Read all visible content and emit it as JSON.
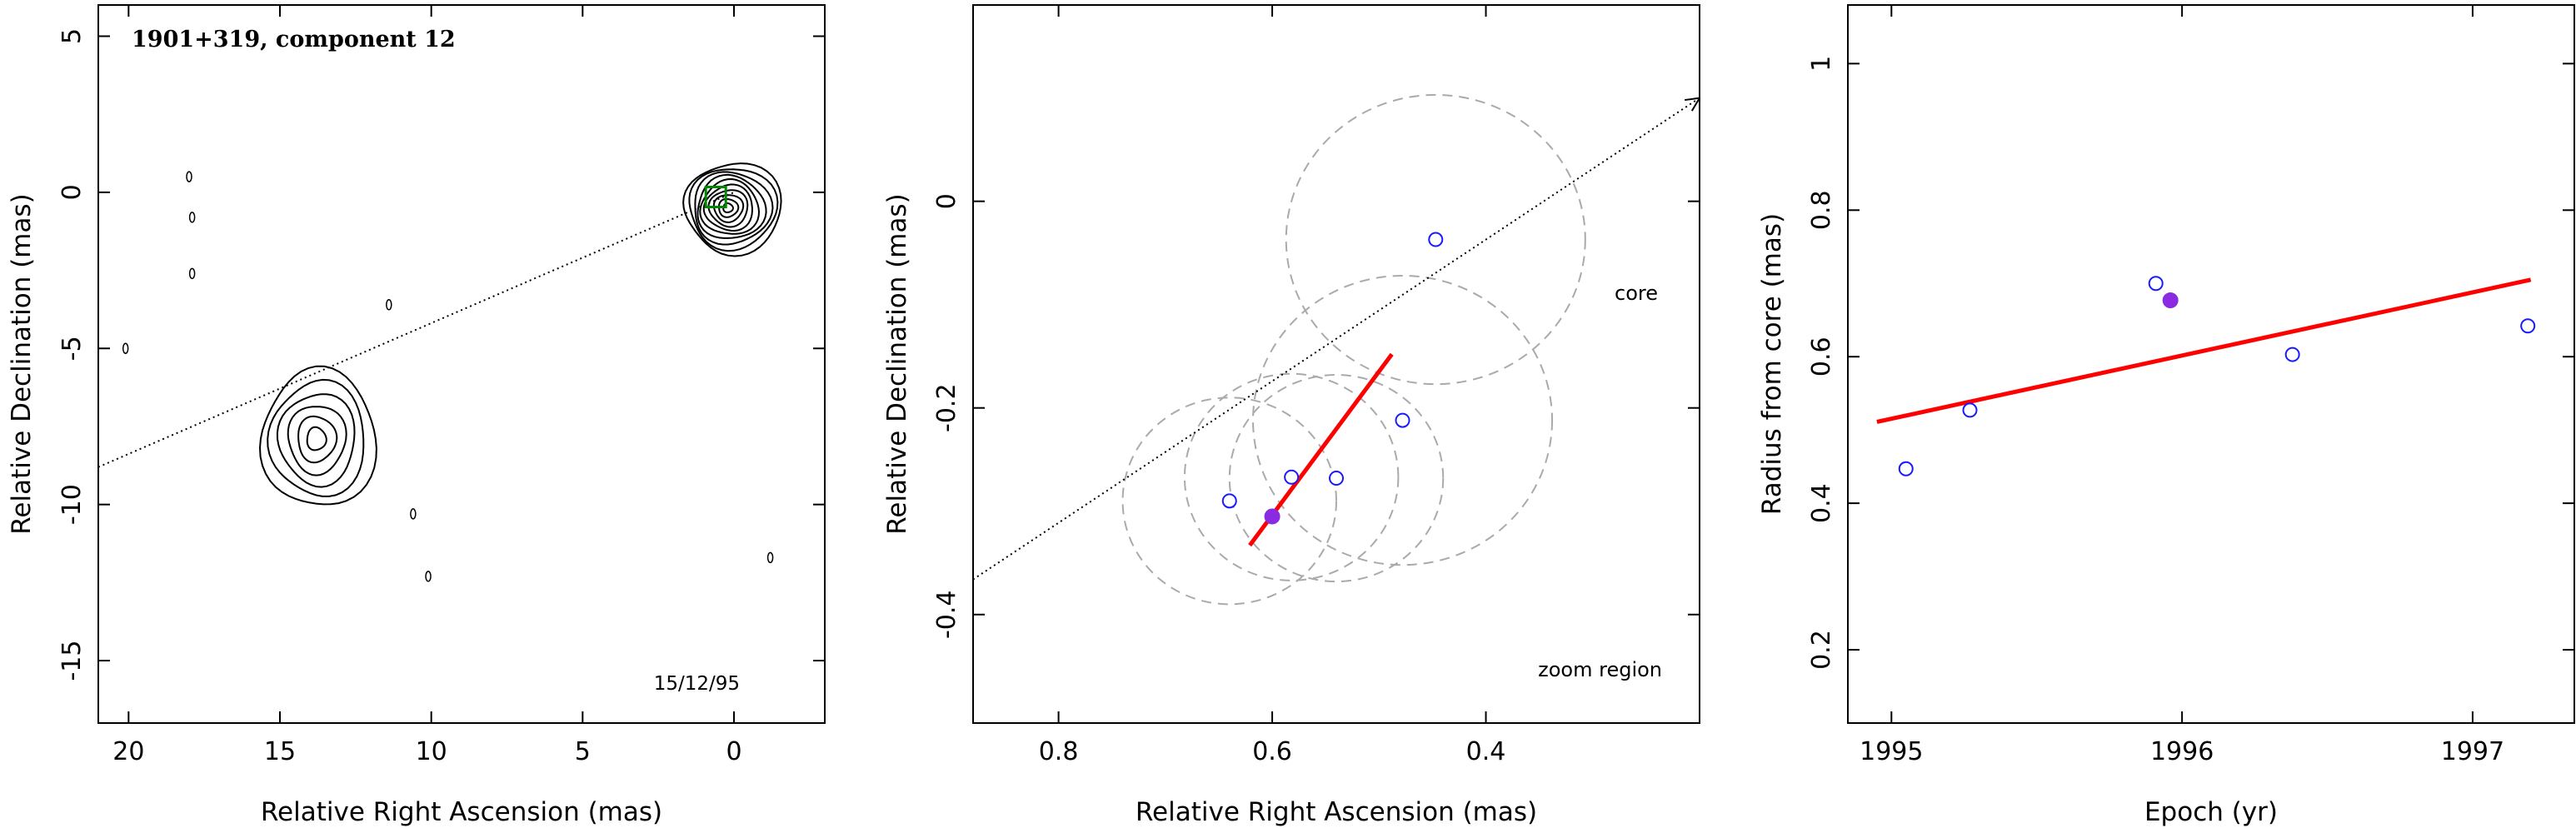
{
  "chart_data": [
    {
      "type": "contour",
      "title": "1901+319, component 12",
      "xlabel": "Relative Right Ascension (mas)",
      "ylabel": "Relative Declination (mas)",
      "xlim": [
        21,
        -3
      ],
      "ylim": [
        -17,
        6
      ],
      "xticks": [
        20,
        15,
        10,
        5,
        0
      ],
      "yticks": [
        5,
        0,
        -5,
        -10,
        -15
      ],
      "date_label": "15/12/95",
      "axis_line": [
        [
          21,
          -8.8
        ],
        [
          0,
          0
        ]
      ],
      "core_blob": {
        "center": [
          0.2,
          -0.5
        ],
        "levels": 10,
        "max_radius_x": 1.6,
        "max_radius_y": 1.45
      },
      "jet_blob": {
        "center": [
          13.8,
          -7.9
        ],
        "levels": 6,
        "max_radius_x": 1.9,
        "max_radius_y": 2.2
      },
      "component_marker": [
        0.6,
        -0.15
      ]
    },
    {
      "type": "scatter",
      "xlabel": "Relative Right Ascension (mas)",
      "ylabel": "Relative Declination (mas)",
      "xlim": [
        0.88,
        0.2
      ],
      "ylim": [
        -0.505,
        0.19
      ],
      "xticks": [
        0.8,
        0.6,
        0.4
      ],
      "yticks": [
        0,
        -0.2,
        -0.4
      ],
      "annotation_core": "core",
      "annotation_zoom": "zoom region",
      "points_open": [
        [
          0.64,
          -0.29
        ],
        [
          0.582,
          -0.267
        ],
        [
          0.54,
          -0.268
        ],
        [
          0.478,
          -0.212
        ],
        [
          0.447,
          -0.037
        ]
      ],
      "point_filled": [
        0.6,
        -0.305
      ],
      "circles": [
        {
          "center": [
            0.64,
            -0.29
          ],
          "radius": 0.1
        },
        {
          "center": [
            0.582,
            -0.267
          ],
          "radius": 0.1
        },
        {
          "center": [
            0.54,
            -0.268
          ],
          "radius": 0.1
        },
        {
          "center": [
            0.478,
            -0.212
          ],
          "radius": 0.14
        },
        {
          "center": [
            0.447,
            -0.037
          ],
          "radius": 0.14
        }
      ],
      "fit_line": [
        [
          0.621,
          -0.333
        ],
        [
          0.488,
          -0.148
        ]
      ],
      "axis_line": [
        [
          0.88,
          -0.366
        ],
        [
          0.2,
          0.1
        ]
      ]
    },
    {
      "type": "scatter",
      "xlabel": "Epoch (yr)",
      "ylabel": "Radius from core (mas)",
      "xlim": [
        1994.85,
        1997.35
      ],
      "ylim": [
        0.1,
        1.08
      ],
      "xticks": [
        1995,
        1996,
        1997
      ],
      "yticks": [
        0.2,
        0.4,
        0.6,
        0.8,
        1
      ],
      "points_open": [
        [
          1995.05,
          0.447
        ],
        [
          1995.27,
          0.527
        ],
        [
          1995.91,
          0.7
        ],
        [
          1996.38,
          0.603
        ],
        [
          1997.19,
          0.642
        ]
      ],
      "point_filled": [
        1995.96,
        0.677
      ],
      "fit_line": [
        [
          1994.95,
          0.511
        ],
        [
          1997.2,
          0.705
        ]
      ]
    }
  ],
  "colors": {
    "fit_line": "#ff0000",
    "open_point": "#1a1aff",
    "filled_point": "#8a2be2",
    "circles": "#aaaaaa",
    "marker": "#008800"
  }
}
